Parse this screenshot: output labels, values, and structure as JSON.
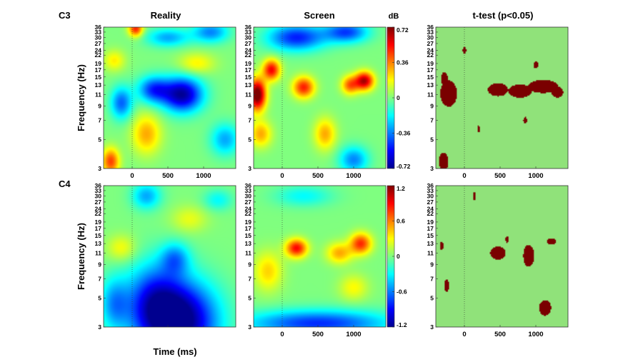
{
  "figure": {
    "columns": [
      "Reality",
      "Screen",
      "t-test (p<0.05)"
    ],
    "rows": [
      "C3",
      "C4"
    ],
    "xlabel": "Time (ms)",
    "ylabel": "Frequency (Hz)",
    "colorbar_unit": "dB",
    "colormap": [
      "#00008f",
      "#0000ff",
      "#00ffff",
      "#ffff00",
      "#ff0000",
      "#800000"
    ],
    "ttest_colors": {
      "background": "#90e27a",
      "significant": "#7a0000"
    }
  },
  "chart_data": [
    {
      "type": "heatmap",
      "panel": "C3 Reality",
      "row": "C3",
      "column": "Reality",
      "x_ticks": [
        "0",
        "500",
        "1000"
      ],
      "x_range": [
        -400,
        1450
      ],
      "y_ticks": [
        "3",
        "5",
        "7",
        "9",
        "11",
        "13",
        "15",
        "17",
        "19",
        "22",
        "24",
        "27",
        "30",
        "33",
        "36"
      ],
      "y_range": [
        3,
        36
      ],
      "y_scale": "log",
      "clim": [
        -0.72,
        0.72
      ],
      "blobs": [
        {
          "t": 700,
          "f": 11,
          "dt": 280,
          "df": 0.13,
          "v": -0.7
        },
        {
          "t": 300,
          "f": 12,
          "dt": 220,
          "df": 0.1,
          "v": -0.45
        },
        {
          "t": -150,
          "f": 9.5,
          "dt": 150,
          "df": 0.12,
          "v": -0.4
        },
        {
          "t": 200,
          "f": 5.5,
          "dt": 200,
          "df": 0.15,
          "v": 0.3
        },
        {
          "t": -300,
          "f": 3.4,
          "dt": 120,
          "df": 0.1,
          "v": 0.45
        },
        {
          "t": 50,
          "f": 35,
          "dt": 100,
          "df": 0.06,
          "v": 0.5
        },
        {
          "t": 1100,
          "f": 33,
          "dt": 250,
          "df": 0.08,
          "v": -0.35
        },
        {
          "t": 500,
          "f": 30,
          "dt": 300,
          "df": 0.07,
          "v": -0.3
        },
        {
          "t": 1300,
          "f": 5,
          "dt": 200,
          "df": 0.12,
          "v": -0.3
        },
        {
          "t": 900,
          "f": 19,
          "dt": 250,
          "df": 0.08,
          "v": 0.2
        },
        {
          "t": -250,
          "f": 20,
          "dt": 150,
          "df": 0.08,
          "v": 0.2
        }
      ],
      "x_tick_labels_visible": true,
      "ylabel_visible": true
    },
    {
      "type": "heatmap",
      "panel": "C3 Screen",
      "row": "C3",
      "column": "Screen",
      "x_ticks": [
        "0",
        "500",
        "1000"
      ],
      "x_range": [
        -400,
        1450
      ],
      "y_ticks": [
        "3",
        "5",
        "7",
        "9",
        "11",
        "13",
        "15",
        "17",
        "19",
        "22",
        "24",
        "27",
        "30",
        "33",
        "36"
      ],
      "y_range": [
        3,
        36
      ],
      "y_scale": "log",
      "clim": [
        -0.72,
        0.72
      ],
      "colorbar_ticks": [
        "0.72",
        "0.36",
        "0",
        "-0.36",
        "-0.72"
      ],
      "blobs": [
        {
          "t": -350,
          "f": 11,
          "dt": 120,
          "df": 0.12,
          "v": 0.8
        },
        {
          "t": -150,
          "f": 17,
          "dt": 120,
          "df": 0.08,
          "v": 0.55
        },
        {
          "t": 300,
          "f": 12.5,
          "dt": 150,
          "df": 0.08,
          "v": 0.5
        },
        {
          "t": 1150,
          "f": 14,
          "dt": 130,
          "df": 0.07,
          "v": 0.65
        },
        {
          "t": 950,
          "f": 13,
          "dt": 120,
          "df": 0.07,
          "v": 0.4
        },
        {
          "t": 200,
          "f": 30,
          "dt": 400,
          "df": 0.1,
          "v": -0.5
        },
        {
          "t": 900,
          "f": 33,
          "dt": 300,
          "df": 0.08,
          "v": -0.45
        },
        {
          "t": 600,
          "f": 5.5,
          "dt": 150,
          "df": 0.12,
          "v": 0.3
        },
        {
          "t": -300,
          "f": 5.5,
          "dt": 150,
          "df": 0.1,
          "v": 0.3
        },
        {
          "t": 1000,
          "f": 3.5,
          "dt": 200,
          "df": 0.1,
          "v": -0.35
        }
      ],
      "x_tick_labels_visible": true,
      "ylabel_visible": false
    },
    {
      "type": "heatmap",
      "panel": "C3 t-test",
      "row": "C3",
      "column": "t-test (p<0.05)",
      "x_ticks": [
        "0",
        "500",
        "1000"
      ],
      "x_range": [
        -400,
        1450
      ],
      "y_ticks": [
        "3",
        "5",
        "7",
        "9",
        "11",
        "13",
        "15",
        "17",
        "19",
        "22",
        "24",
        "27",
        "30",
        "33",
        "36"
      ],
      "y_range": [
        3,
        36
      ],
      "y_scale": "log",
      "values": "binary",
      "significant_regions": [
        {
          "t": -220,
          "f": 11.2,
          "dt": 140,
          "df": 0.12
        },
        {
          "t": -280,
          "f": 14.5,
          "dt": 60,
          "df": 0.06
        },
        {
          "t": 470,
          "f": 12,
          "dt": 170,
          "df": 0.06
        },
        {
          "t": 780,
          "f": 11.7,
          "dt": 200,
          "df": 0.06
        },
        {
          "t": 1100,
          "f": 12.7,
          "dt": 250,
          "df": 0.06
        },
        {
          "t": 1300,
          "f": 11.5,
          "dt": 100,
          "df": 0.05
        },
        {
          "t": -290,
          "f": 3.4,
          "dt": 80,
          "df": 0.08
        },
        {
          "t": 1000,
          "f": 18.5,
          "dt": 40,
          "df": 0.03
        },
        {
          "t": 0,
          "f": 24,
          "dt": 30,
          "df": 0.03
        },
        {
          "t": 850,
          "f": 7,
          "dt": 30,
          "df": 0.03
        },
        {
          "t": 200,
          "f": 6,
          "dt": 25,
          "df": 0.03
        }
      ],
      "x_tick_labels_visible": true,
      "ylabel_visible": false
    },
    {
      "type": "heatmap",
      "panel": "C4 Reality",
      "row": "C4",
      "column": "Reality",
      "x_ticks": [
        "0",
        "500",
        "1000"
      ],
      "x_range": [
        -400,
        1450
      ],
      "y_ticks": [
        "3",
        "5",
        "7",
        "9",
        "11",
        "13",
        "15",
        "17",
        "19",
        "22",
        "24",
        "27",
        "30",
        "33",
        "36"
      ],
      "y_range": [
        3,
        36
      ],
      "y_scale": "log",
      "clim": [
        -1.2,
        1.2
      ],
      "blobs": [
        {
          "t": 700,
          "f": 3.3,
          "dt": 500,
          "df": 0.3,
          "v": -1.2
        },
        {
          "t": 300,
          "f": 4.5,
          "dt": 400,
          "df": 0.3,
          "v": -0.8
        },
        {
          "t": -250,
          "f": 4.5,
          "dt": 200,
          "df": 0.2,
          "v": -0.5
        },
        {
          "t": 600,
          "f": 10,
          "dt": 200,
          "df": 0.12,
          "v": -0.5
        },
        {
          "t": 200,
          "f": 30,
          "dt": 200,
          "df": 0.1,
          "v": -0.5
        },
        {
          "t": -150,
          "f": 12,
          "dt": 200,
          "df": 0.1,
          "v": 0.3
        },
        {
          "t": 800,
          "f": 20,
          "dt": 250,
          "df": 0.1,
          "v": 0.25
        },
        {
          "t": 1200,
          "f": 28,
          "dt": 200,
          "df": 0.08,
          "v": -0.3
        }
      ],
      "x_tick_labels_visible": false,
      "ylabel_visible": true
    },
    {
      "type": "heatmap",
      "panel": "C4 Screen",
      "row": "C4",
      "column": "Screen",
      "x_ticks": [
        "0",
        "500",
        "1000"
      ],
      "x_range": [
        -400,
        1450
      ],
      "y_ticks": [
        "3",
        "5",
        "7",
        "9",
        "11",
        "13",
        "15",
        "17",
        "19",
        "22",
        "24",
        "27",
        "30",
        "33",
        "36"
      ],
      "y_range": [
        3,
        36
      ],
      "y_scale": "log",
      "clim": [
        -1.2,
        1.2
      ],
      "colorbar_ticks": [
        "1.2",
        "0.6",
        "0",
        "-0.6",
        "-1.2"
      ],
      "blobs": [
        {
          "t": 200,
          "f": 12,
          "dt": 150,
          "df": 0.07,
          "v": 0.9
        },
        {
          "t": 1100,
          "f": 13,
          "dt": 150,
          "df": 0.08,
          "v": 0.8
        },
        {
          "t": 800,
          "f": 11,
          "dt": 180,
          "df": 0.08,
          "v": 0.5
        },
        {
          "t": 500,
          "f": 3.2,
          "dt": 1000,
          "df": 0.1,
          "v": -0.8
        },
        {
          "t": -200,
          "f": 8,
          "dt": 200,
          "df": 0.15,
          "v": 0.4
        },
        {
          "t": 300,
          "f": 30,
          "dt": 400,
          "df": 0.08,
          "v": -0.3
        },
        {
          "t": 1000,
          "f": 6,
          "dt": 200,
          "df": 0.1,
          "v": 0.3
        }
      ],
      "x_tick_labels_visible": true,
      "ylabel_visible": false
    },
    {
      "type": "heatmap",
      "panel": "C4 t-test",
      "row": "C4",
      "column": "t-test (p<0.05)",
      "x_ticks": [
        "0",
        "500",
        "1000"
      ],
      "x_range": [
        -400,
        1450
      ],
      "y_ticks": [
        "3",
        "5",
        "7",
        "9",
        "11",
        "13",
        "15",
        "17",
        "19",
        "22",
        "24",
        "27",
        "30",
        "33",
        "36"
      ],
      "y_range": [
        3,
        36
      ],
      "y_scale": "log",
      "values": "binary",
      "significant_regions": [
        {
          "t": 470,
          "f": 11,
          "dt": 130,
          "df": 0.06
        },
        {
          "t": 900,
          "f": 10.5,
          "dt": 90,
          "df": 0.1
        },
        {
          "t": 1130,
          "f": 4.2,
          "dt": 100,
          "df": 0.07
        },
        {
          "t": -320,
          "f": 12.5,
          "dt": 30,
          "df": 0.04
        },
        {
          "t": -250,
          "f": 6.2,
          "dt": 40,
          "df": 0.06
        },
        {
          "t": 140,
          "f": 30,
          "dt": 25,
          "df": 0.04
        },
        {
          "t": 600,
          "f": 14,
          "dt": 30,
          "df": 0.03
        },
        {
          "t": 1220,
          "f": 13.5,
          "dt": 80,
          "df": 0.03
        }
      ],
      "x_tick_labels_visible": true,
      "ylabel_visible": false
    }
  ]
}
